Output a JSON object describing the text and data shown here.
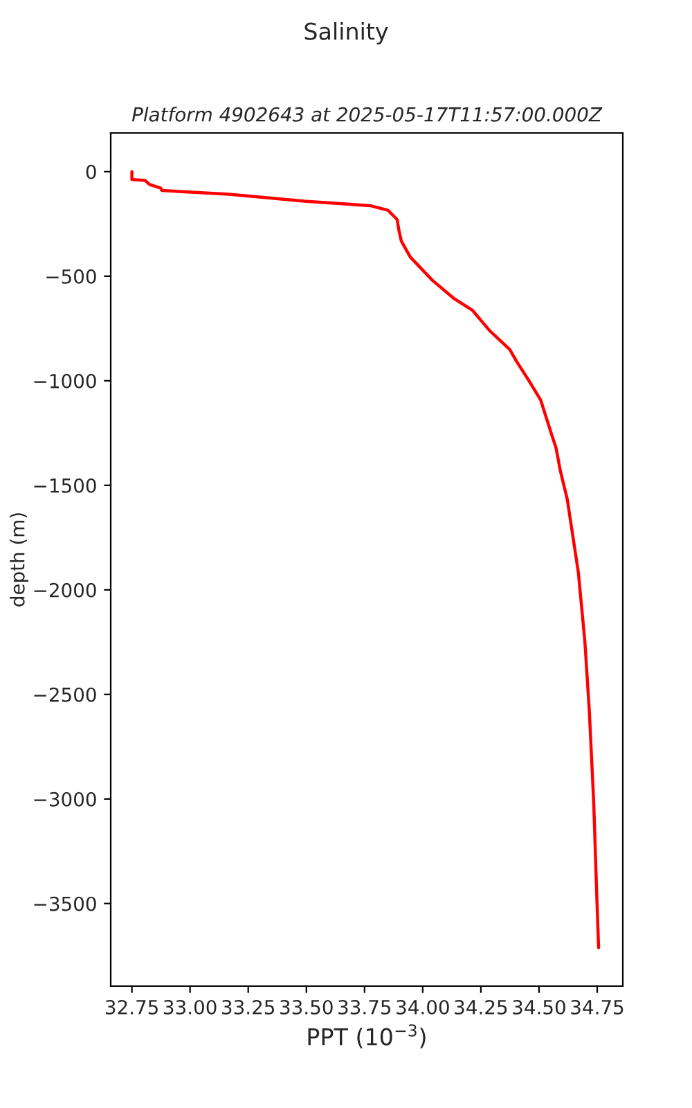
{
  "chart_data": {
    "type": "line",
    "title": "Salinity",
    "subtitle": "Platform 4902643 at 2025-05-17T11:57:00.000Z",
    "xlabel": "PPT (10$^{−3}$)",
    "ylabel": "depth (m)",
    "series": [
      {
        "color": "#ff0000",
        "x": [
          32.75,
          32.75,
          32.807,
          32.826,
          32.874,
          32.879,
          33.168,
          33.491,
          33.776,
          33.851,
          33.89,
          33.899,
          33.908,
          33.947,
          34.042,
          34.136,
          34.213,
          34.288,
          34.374,
          34.402,
          34.459,
          34.507,
          34.554,
          34.573,
          34.592,
          34.621,
          34.669,
          34.697,
          34.716,
          34.735,
          34.748,
          34.756
        ],
        "values": [
          0,
          -38,
          -42,
          -61,
          -79,
          -90,
          -108,
          -141,
          -163,
          -185,
          -229,
          -288,
          -332,
          -409,
          -520,
          -608,
          -662,
          -761,
          -850,
          -905,
          -1004,
          -1092,
          -1257,
          -1321,
          -1433,
          -1565,
          -1917,
          -2247,
          -2577,
          -3018,
          -3458,
          -3711
        ]
      }
    ],
    "xlim": [
      32.659,
      34.86
    ],
    "ylim": [
      -3895,
      185
    ],
    "xticks": [
      {
        "value": 32.75,
        "label": "32.75"
      },
      {
        "value": 33.0,
        "label": "33.00"
      },
      {
        "value": 33.25,
        "label": "33.25"
      },
      {
        "value": 33.5,
        "label": "33.50"
      },
      {
        "value": 33.75,
        "label": "33.75"
      },
      {
        "value": 34.0,
        "label": "34.00"
      },
      {
        "value": 34.25,
        "label": "34.25"
      },
      {
        "value": 34.5,
        "label": "34.50"
      },
      {
        "value": 34.75,
        "label": "34.75"
      }
    ],
    "yticks": [
      0,
      {
        "value": -500,
        "label": "−500"
      },
      {
        "value": -1000,
        "label": "−1000"
      },
      {
        "value": -1500,
        "label": "−1500"
      },
      {
        "value": -2000,
        "label": "−2000"
      },
      {
        "value": -2500,
        "label": "−2500"
      },
      {
        "value": -3000,
        "label": "−3000"
      },
      {
        "value": -3500,
        "label": "−3500"
      }
    ],
    "grid": false,
    "marker": "none",
    "line_style": "solid"
  }
}
